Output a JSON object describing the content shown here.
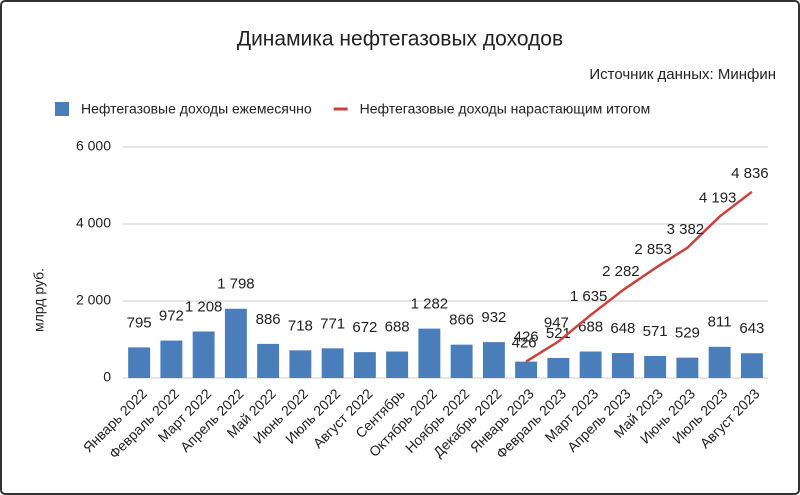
{
  "chart_data": {
    "type": "bar_line",
    "title": "Динамика нефтегазовых доходов",
    "subtitle": "Источник данных: Минфин",
    "y_label": "млрд руб.",
    "categories": [
      "Январь 2022",
      "Февраль 2022",
      "Март 2022",
      "Апрель 2022",
      "Май 2022",
      "Июнь 2022",
      "Июль 2022",
      "Август 2022",
      "Сентябрь",
      "Октябрь 2022",
      "Ноябрь 2022",
      "Декабрь 2022",
      "Январь 2023",
      "Февраль 2023",
      "Март 2023",
      "Апрель 2023",
      "Май 2023",
      "Июнь 2023",
      "Июль 2023",
      "Август 2023"
    ],
    "series": [
      {
        "name": "Нефтегазовые доходы ежемесячно",
        "type": "bar",
        "color": "#4a7ebb",
        "values": [
          795,
          972,
          1208,
          1798,
          886,
          718,
          771,
          672,
          688,
          1282,
          866,
          932,
          426,
          521,
          688,
          648,
          571,
          529,
          811,
          643
        ],
        "value_labels": [
          "795",
          "972",
          "1 208",
          "1 798",
          "886",
          "718",
          "771",
          "672",
          "688",
          "1 282",
          "866",
          "932",
          "426",
          "521",
          "688",
          "648",
          "571",
          "529",
          "811",
          "643"
        ]
      },
      {
        "name": "Нефтегазовые доходы нарастающим итогом",
        "type": "line",
        "color": "#c9413a",
        "values": [
          null,
          null,
          null,
          null,
          null,
          null,
          null,
          null,
          null,
          null,
          null,
          null,
          426,
          947,
          1635,
          2282,
          2853,
          3382,
          4193,
          4836
        ],
        "value_labels": [
          null,
          null,
          null,
          null,
          null,
          null,
          null,
          null,
          null,
          null,
          null,
          null,
          "426",
          "947",
          "1 635",
          "2 282",
          "2 853",
          "3 382",
          "4 193",
          "4 836"
        ]
      }
    ],
    "ylim": [
      0,
      6000
    ],
    "yticks": [
      0,
      {
        "value": 2000,
        "label": "2 000"
      },
      {
        "value": 4000,
        "label": "4 000"
      },
      {
        "value": 6000,
        "label": "6 000"
      }
    ],
    "grid": true,
    "legend": "top"
  }
}
